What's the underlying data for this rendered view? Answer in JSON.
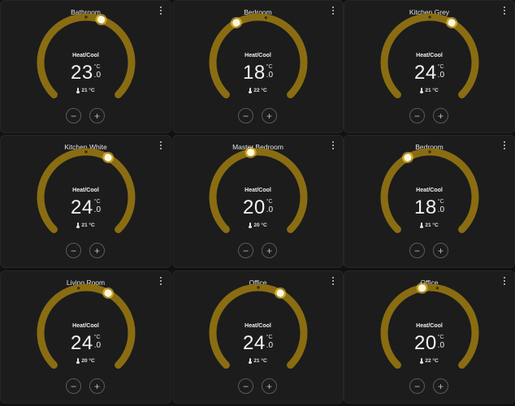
{
  "colors": {
    "arc": "#8a6d12",
    "handle": "#fff8e0",
    "handle_glow": "#ffd43b",
    "card": "#1c1c1c",
    "background": "#111111"
  },
  "icons": {
    "menu": "more-vertical-icon",
    "thermometer": "thermometer-icon",
    "minus": "minus-icon",
    "plus": "plus-icon"
  },
  "controls": {
    "minus_label": "−",
    "plus_label": "+"
  },
  "thermostats": [
    {
      "name": "Bathroom",
      "mode": "Heat/Cool",
      "target_int": "23",
      "target_dec": ".0",
      "unit": "°C",
      "current": "21 °C",
      "target_value": 23.0,
      "current_value": 21
    },
    {
      "name": "Bedroom",
      "mode": "Heat/Cool",
      "target_int": "18",
      "target_dec": ".0",
      "unit": "°C",
      "current": "22 °C",
      "target_value": 18.0,
      "current_value": 22
    },
    {
      "name": "Kitchen Grey",
      "mode": "Heat/Cool",
      "target_int": "24",
      "target_dec": ".0",
      "unit": "°C",
      "current": "21 °C",
      "target_value": 24.0,
      "current_value": 21
    },
    {
      "name": "Kitchen White",
      "mode": "Heat/Cool",
      "target_int": "24",
      "target_dec": ".0",
      "unit": "°C",
      "current": "21 °C",
      "target_value": 24.0,
      "current_value": 21
    },
    {
      "name": "Master Bedroom",
      "mode": "Heat/Cool",
      "target_int": "20",
      "target_dec": ".0",
      "unit": "°C",
      "current": "20 °C",
      "target_value": 20.0,
      "current_value": 20
    },
    {
      "name": "Bedroom",
      "mode": "Heat/Cool",
      "target_int": "18",
      "target_dec": ".0",
      "unit": "°C",
      "current": "21 °C",
      "target_value": 18.0,
      "current_value": 21
    },
    {
      "name": "Living Room",
      "mode": "Heat/Cool",
      "target_int": "24",
      "target_dec": ".0",
      "unit": "°C",
      "current": "20 °C",
      "target_value": 24.0,
      "current_value": 20
    },
    {
      "name": "Office",
      "mode": "Heat/Cool",
      "target_int": "24",
      "target_dec": ".0",
      "unit": "°C",
      "current": "21 °C",
      "target_value": 24.0,
      "current_value": 21
    },
    {
      "name": "Office",
      "mode": "Heat/Cool",
      "target_int": "20",
      "target_dec": ".0",
      "unit": "°C",
      "current": "22 °C",
      "target_value": 20.0,
      "current_value": 22
    }
  ]
}
